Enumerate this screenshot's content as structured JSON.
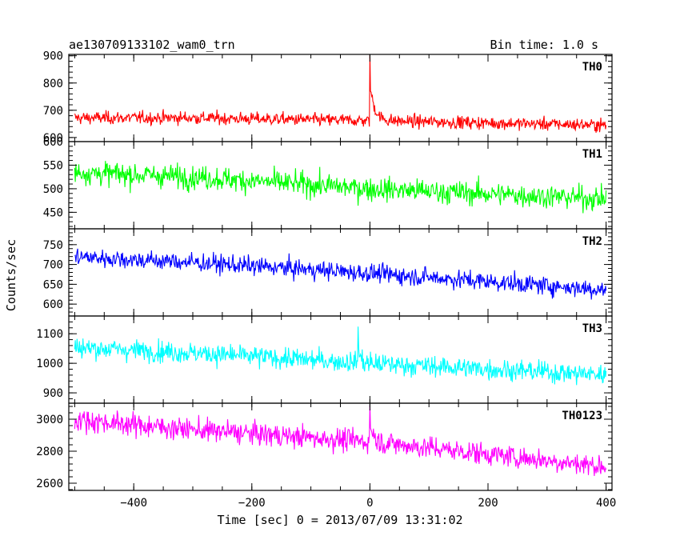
{
  "header": {
    "title": "ae130709133102_wam0_trn",
    "bin_time": "Bin time: 1.0 s"
  },
  "chart_data": {
    "type": "line",
    "title": "ae130709133102_wam0_trn",
    "xlabel": "Time [sec] 0 = 2013/07/09 13:31:02",
    "ylabel": "Counts/sec",
    "xlim": [
      -510,
      410
    ],
    "x_ticks": [
      -400,
      -200,
      0,
      200,
      400
    ],
    "x_step": 1.0,
    "grid": false,
    "series": [
      {
        "name": "TH0",
        "color": "#ff0000",
        "ylim": [
          585,
          905
        ],
        "y_ticks": [
          600,
          700,
          800,
          900
        ],
        "baseline": [
          [
            -510,
            672
          ],
          [
            -300,
            672
          ],
          [
            0,
            662
          ],
          [
            410,
            645
          ]
        ],
        "noise": 30,
        "burst": {
          "t": 0,
          "peak": 900,
          "decay": 8
        }
      },
      {
        "name": "TH1",
        "color": "#00ff00",
        "ylim": [
          415,
          600
        ],
        "y_ticks": [
          450,
          500,
          550,
          600
        ],
        "baseline": [
          [
            -510,
            535
          ],
          [
            -300,
            525
          ],
          [
            0,
            500
          ],
          [
            410,
            478
          ]
        ],
        "noise": 32,
        "burst": null
      },
      {
        "name": "TH2",
        "color": "#0000ff",
        "ylim": [
          570,
          790
        ],
        "y_ticks": [
          600,
          650,
          700,
          750
        ],
        "baseline": [
          [
            -510,
            720
          ],
          [
            -300,
            705
          ],
          [
            0,
            678
          ],
          [
            410,
            635
          ]
        ],
        "noise": 30,
        "burst": null
      },
      {
        "name": "TH3",
        "color": "#00ffff",
        "ylim": [
          865,
          1160
        ],
        "y_ticks": [
          900,
          1000,
          1100
        ],
        "baseline": [
          [
            -510,
            1055
          ],
          [
            -300,
            1035
          ],
          [
            0,
            1000
          ],
          [
            410,
            960
          ]
        ],
        "noise": 45,
        "burst": {
          "t": -20,
          "peak": 1130,
          "decay": 3
        }
      },
      {
        "name": "TH0123",
        "color": "#ff00ff",
        "ylim": [
          2555,
          3100
        ],
        "y_ticks": [
          2600,
          2800,
          3000
        ],
        "baseline": [
          [
            -510,
            3000
          ],
          [
            -300,
            2935
          ],
          [
            0,
            2860
          ],
          [
            410,
            2700
          ]
        ],
        "noise": 90,
        "burst": {
          "t": 0,
          "peak": 3080,
          "decay": 6
        }
      }
    ]
  }
}
